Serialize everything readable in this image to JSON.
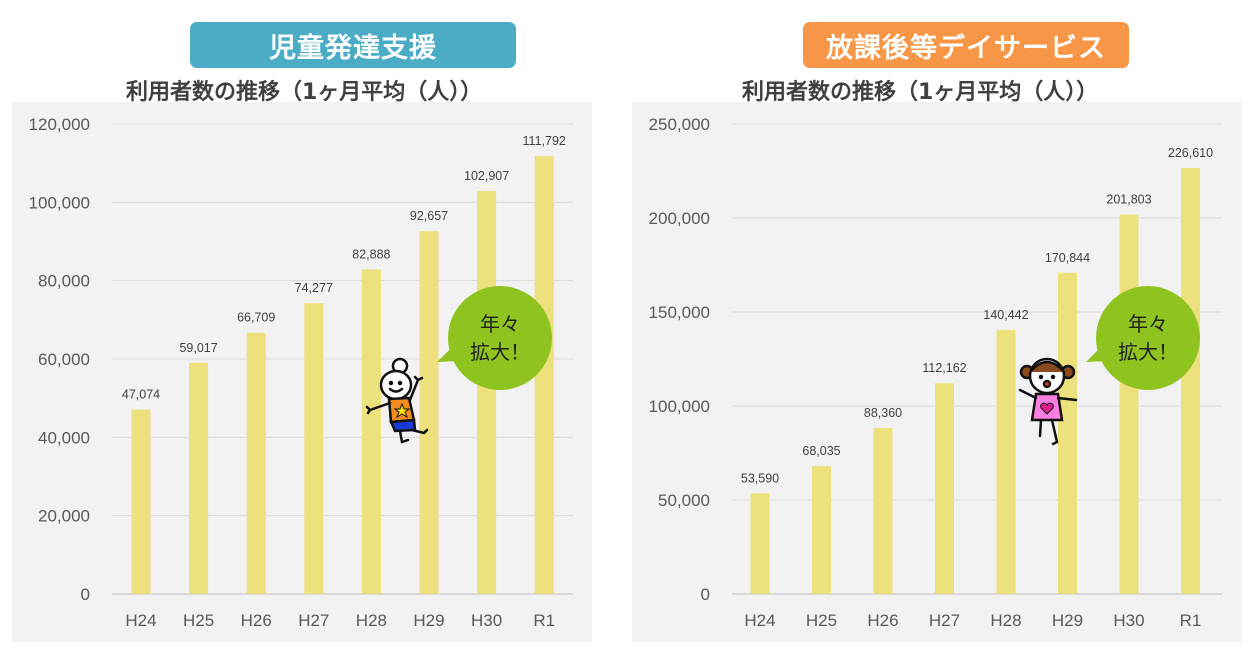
{
  "chart_data": [
    {
      "type": "bar",
      "badge": "児童発達支援",
      "title": "利用者数の推移（1ヶ月平均（人））",
      "categories": [
        "H24",
        "H25",
        "H26",
        "H27",
        "H28",
        "H29",
        "H30",
        "R1"
      ],
      "values": [
        47074,
        59017,
        66709,
        74277,
        82888,
        92657,
        102907,
        111792
      ],
      "value_labels": [
        "47,074",
        "59,017",
        "66,709",
        "74,277",
        "82,888",
        "92,657",
        "102,907",
        "111,792"
      ],
      "ylim": [
        0,
        120000
      ],
      "yticks": [
        "0",
        "20,000",
        "40,000",
        "60,000",
        "80,000",
        "100,000",
        "120,000"
      ],
      "ytick_values": [
        0,
        20000,
        40000,
        60000,
        80000,
        100000,
        120000
      ],
      "grid": true,
      "bar_color": "#ede17e",
      "badge_color": "#4bacc6",
      "annotation": [
        "年々",
        "拡大！"
      ]
    },
    {
      "type": "bar",
      "badge": "放課後等デイサービス",
      "title": "利用者数の推移（1ヶ月平均（人））",
      "categories": [
        "H24",
        "H25",
        "H26",
        "H27",
        "H28",
        "H29",
        "H30",
        "R1"
      ],
      "values": [
        53590,
        68035,
        88360,
        112162,
        140442,
        170844,
        201803,
        226610
      ],
      "value_labels": [
        "53,590",
        "68,035",
        "88,360",
        "112,162",
        "140,442",
        "170,844",
        "201,803",
        "226,610"
      ],
      "ylim": [
        0,
        250000
      ],
      "yticks": [
        "0",
        "50,000",
        "100,000",
        "150,000",
        "200,000",
        "250,000"
      ],
      "ytick_values": [
        0,
        50000,
        100000,
        150000,
        200000,
        250000
      ],
      "grid": true,
      "bar_color": "#ede17e",
      "badge_color": "#f79646",
      "annotation": [
        "年々",
        "拡大！"
      ]
    }
  ]
}
